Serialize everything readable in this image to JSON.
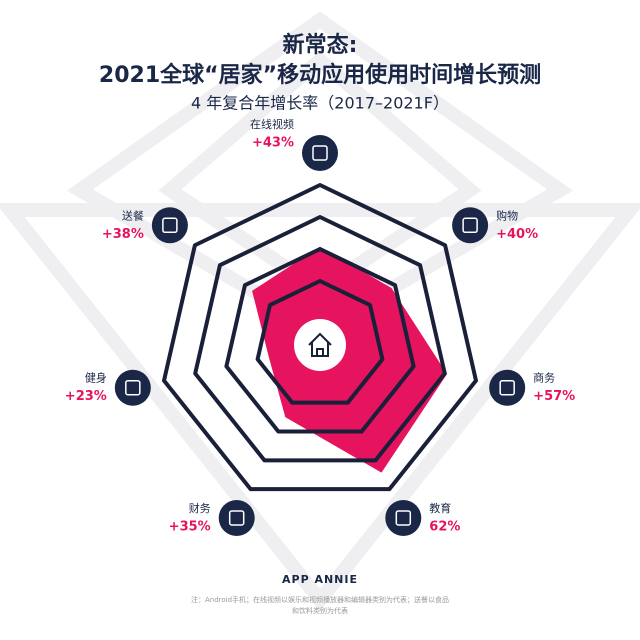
{
  "chart_data": {
    "type": "radar",
    "title": [
      "新常态:",
      "2021全球“居家”移动应用使用时间增长预测"
    ],
    "subtitle": "4 年复合年增长率（2017–2021F）",
    "categories": [
      "在线视频",
      "购物",
      "商务",
      "教育",
      "财务",
      "健身",
      "送餐"
    ],
    "values": [
      43,
      40,
      57,
      62,
      35,
      23,
      38
    ],
    "value_labels": [
      "+43%",
      "+40%",
      "+57%",
      "62%",
      "+35%",
      "+23%",
      "+38%"
    ],
    "color": "#e6135e",
    "rlim": [
      0,
      70
    ],
    "brand": "APP ANNIE",
    "note": [
      "注：Android手机；在线视频以娱乐和视频播放器和编辑器类别为代表；送餐以食品",
      "和饮料类别为代表"
    ]
  }
}
